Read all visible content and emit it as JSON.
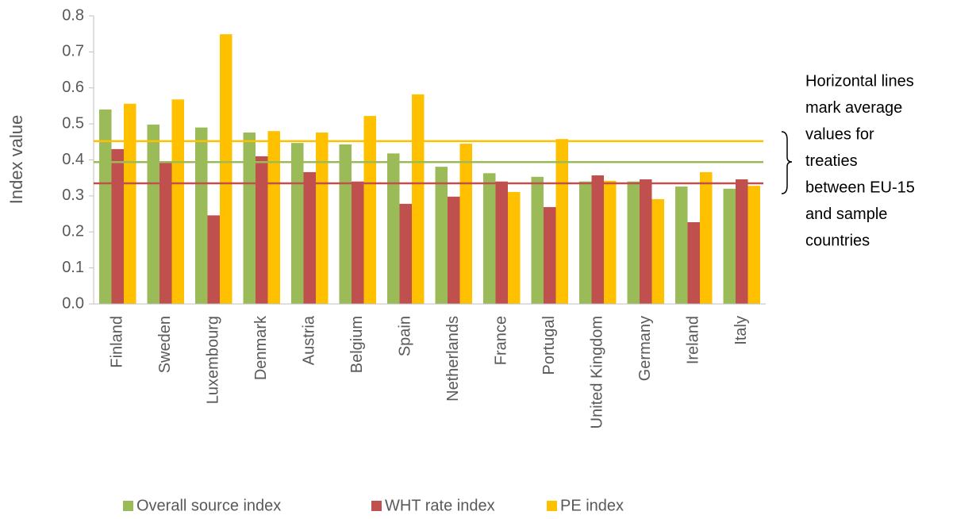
{
  "chart_data": {
    "type": "bar",
    "y_axis_label": "Index value",
    "categories": [
      "Finland",
      "Sweden",
      "Luxembourg",
      "Denmark",
      "Austria",
      "Belgium",
      "Spain",
      "Netherlands",
      "France",
      "Portugal",
      "United Kingdom",
      "Germany",
      "Ireland",
      "Italy"
    ],
    "series": [
      {
        "name": "Overall source index",
        "color": "#9bbb59",
        "values": [
          0.54,
          0.498,
          0.49,
          0.476,
          0.447,
          0.443,
          0.418,
          0.381,
          0.363,
          0.353,
          0.34,
          0.34,
          0.326,
          0.32
        ]
      },
      {
        "name": "WHT rate index",
        "color": "#c0504d",
        "values": [
          0.43,
          0.392,
          0.246,
          0.41,
          0.366,
          0.34,
          0.278,
          0.298,
          0.34,
          0.269,
          0.357,
          0.346,
          0.227,
          0.346
        ]
      },
      {
        "name": "PE index",
        "color": "#ffc000",
        "values": [
          0.556,
          0.568,
          0.749,
          0.48,
          0.476,
          0.522,
          0.582,
          0.445,
          0.311,
          0.458,
          0.342,
          0.291,
          0.366,
          0.328
        ]
      }
    ],
    "reference_lines": [
      {
        "value": 0.452,
        "color": "#ffc000"
      },
      {
        "value": 0.394,
        "color": "#9bbb59"
      },
      {
        "value": 0.335,
        "color": "#c0504d"
      }
    ],
    "annotation": [
      "Horizontal lines",
      "mark average",
      "values for",
      "treaties",
      "between EU-15",
      "and sample",
      "countries"
    ],
    "ylim": [
      0,
      0.8
    ],
    "yticks": [
      {
        "value": 0,
        "label": "0.0"
      },
      0.1,
      0.2,
      0.3,
      0.4,
      0.5,
      0.6,
      0.7,
      0.8
    ],
    "grid": false,
    "legend": "bottom"
  }
}
